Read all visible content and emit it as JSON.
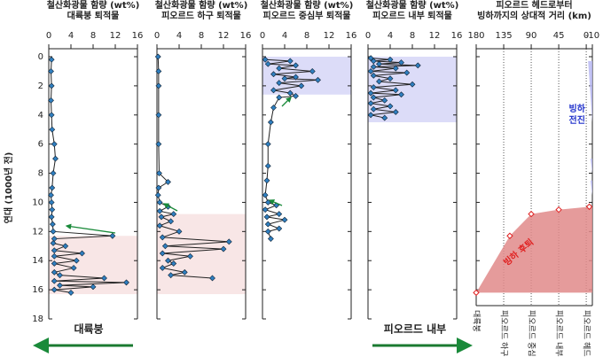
{
  "chart_data": [
    {
      "type": "line",
      "title": [
        "철산화광물 함량 (wt%)",
        "대륙붕 퇴적물"
      ],
      "ylabel": "연대 (1000년 전)",
      "xlim": [
        0,
        16
      ],
      "xticks": [
        0,
        4,
        8,
        12,
        16
      ],
      "ylim": [
        0,
        18
      ],
      "yticks": [
        0,
        2,
        4,
        6,
        8,
        10,
        12,
        14,
        16,
        18
      ],
      "color": "#2f7fc0",
      "bands": [
        {
          "range": [
            12.3,
            16.3
          ],
          "color": "#f8e6e6"
        }
      ],
      "x": [
        0.5,
        0.4,
        0.5,
        0.4,
        0.5,
        0.6,
        1,
        1.2,
        0.8,
        0.6,
        0.4,
        0.5,
        0.6,
        0.5,
        0.7,
        0.8,
        11.5,
        1,
        0.8,
        3,
        1,
        6,
        1,
        5,
        1,
        4.5,
        1,
        2,
        10,
        1,
        14,
        2,
        8,
        1,
        4
      ],
      "values": [
        0.2,
        1,
        2,
        3,
        4,
        5,
        6,
        7,
        8,
        9,
        9.5,
        10,
        10.5,
        11,
        11.5,
        12,
        12.3,
        12.5,
        12.8,
        13,
        13.3,
        13.5,
        13.7,
        14,
        14.2,
        14.5,
        14.8,
        15,
        15.2,
        15.4,
        15.5,
        15.7,
        15.8,
        16,
        16.2
      ]
    },
    {
      "type": "line",
      "title": [
        "철산화광물 함량 (wt%)",
        "피오르드 하구 퇴적물"
      ],
      "xlim": [
        0,
        16
      ],
      "xticks": [
        0,
        4,
        8,
        12,
        16
      ],
      "color": "#2f7fc0",
      "bands": [
        {
          "range": [
            10.8,
            16.3
          ],
          "color": "#f8e6e6"
        }
      ],
      "x": [
        0.2,
        0.3,
        0.3,
        0.3,
        0.3,
        0.4,
        2,
        0.3,
        0.2,
        0.5,
        2,
        0.5,
        3,
        0.8,
        2.5,
        0.5,
        4,
        1,
        13,
        1.5,
        12,
        1,
        6,
        2,
        3,
        1,
        5,
        2.5,
        10
      ],
      "values": [
        0,
        1,
        2,
        4,
        6,
        8,
        8.6,
        9,
        9.5,
        10,
        10.3,
        10.6,
        10.8,
        11,
        11.3,
        11.6,
        12,
        12.4,
        12.7,
        13,
        13.2,
        13.5,
        13.7,
        14,
        14.2,
        14.5,
        14.8,
        15,
        15.2
      ]
    },
    {
      "type": "line",
      "title": [
        "철산화광물 함량 (wt%)",
        "피오르드 중심부 퇴적물"
      ],
      "xlim": [
        0,
        16
      ],
      "xticks": [
        0,
        4,
        8,
        12,
        16
      ],
      "color": "#2f7fc0",
      "bands": [
        {
          "range": [
            0,
            2.6
          ],
          "color": "#dcdcf8"
        }
      ],
      "x": [
        0.5,
        5,
        1,
        6,
        3,
        9,
        2,
        6,
        4,
        10,
        3,
        7,
        2,
        5,
        6,
        3,
        2,
        1.5,
        1,
        1,
        0.8,
        0.5,
        1,
        2.5,
        0.5,
        3,
        0.8,
        4,
        1,
        3,
        1,
        1.5
      ],
      "values": [
        0.2,
        0.3,
        0.5,
        0.6,
        0.8,
        1,
        1.2,
        1.4,
        1.5,
        1.6,
        1.8,
        2,
        2.3,
        2.5,
        2.7,
        2.8,
        3.5,
        4.5,
        6,
        7.5,
        8.5,
        9.5,
        10,
        10.2,
        10.5,
        10.8,
        11,
        11.2,
        11.5,
        11.8,
        12,
        12.5
      ]
    },
    {
      "type": "line",
      "title": [
        "철산화광물 함량 (wt%)",
        "피오르드 내부 퇴적물"
      ],
      "xlim": [
        0,
        16
      ],
      "xticks": [
        0,
        4,
        8,
        12,
        16
      ],
      "color": "#2f7fc0",
      "bands": [
        {
          "range": [
            0,
            4.5
          ],
          "color": "#dcdcf8"
        }
      ],
      "x": [
        0.5,
        4,
        1,
        6,
        2,
        9,
        1,
        5,
        0.5,
        7,
        1,
        4,
        2,
        8,
        1,
        5,
        0.5,
        6,
        1,
        3,
        0.5,
        4,
        1,
        5,
        0.5,
        3
      ],
      "values": [
        0.1,
        0.2,
        0.3,
        0.4,
        0.5,
        0.6,
        0.7,
        0.8,
        1,
        1.1,
        1.3,
        1.5,
        1.7,
        1.9,
        2.1,
        2.3,
        2.5,
        2.6,
        2.8,
        3,
        3.2,
        3.4,
        3.6,
        3.8,
        4,
        4.2
      ]
    },
    {
      "type": "area",
      "title": [
        "피오르드 헤드로부터",
        "빙하까지의 상대적 거리 (km)"
      ],
      "xlim": [
        180,
        -10
      ],
      "xticks": [
        180,
        135,
        90,
        45,
        0,
        -10
      ],
      "locations": [
        "대륙붕",
        "피오르드 하구",
        "피오르드 중심부",
        "피오르드 내부",
        "피오르드 헤드"
      ],
      "series": [
        {
          "name": "빙하 후퇴",
          "color": "#e08a8a",
          "x": [
            180,
            125,
            90,
            45,
            -5
          ],
          "values": [
            16.2,
            12.3,
            10.8,
            10.5,
            10.3
          ]
        },
        {
          "name": "빙하 전진",
          "color": "#b8b8f2",
          "x": [
            -3,
            -10,
            null,
            -7,
            -10,
            null,
            -7,
            -10
          ],
          "values": [
            0.3,
            4.5,
            null,
            7,
            8,
            null,
            8.5,
            9.5
          ]
        }
      ]
    }
  ],
  "arrows": [
    "대륙붕",
    "피오르드 내부"
  ]
}
